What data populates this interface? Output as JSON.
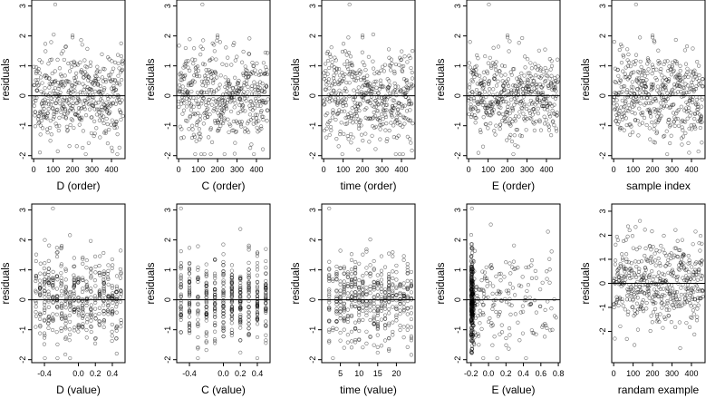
{
  "figure": {
    "description_free": true
  },
  "chart_data": [
    {
      "type": "scatter",
      "panel": "D-order",
      "xlabel": "D (order)",
      "ylabel": "residuals",
      "xlim": [
        -10,
        470
      ],
      "ylim": [
        -2.1,
        3.2
      ],
      "xticks": [
        0,
        100,
        200,
        300,
        400
      ],
      "yticks": [
        -2,
        -1,
        0,
        1,
        2,
        3
      ],
      "hline": 0,
      "points": "order",
      "seed": 11
    },
    {
      "type": "scatter",
      "panel": "C-order",
      "xlabel": "C (order)",
      "ylabel": "residuals",
      "xlim": [
        -10,
        470
      ],
      "ylim": [
        -2.1,
        3.2
      ],
      "xticks": [
        0,
        100,
        200,
        300,
        400
      ],
      "yticks": [
        -2,
        -1,
        0,
        1,
        2,
        3
      ],
      "hline": 0,
      "points": "order",
      "seed": 22
    },
    {
      "type": "scatter",
      "panel": "time-order",
      "xlabel": "time (order)",
      "ylabel": "residuals",
      "xlim": [
        -10,
        470
      ],
      "ylim": [
        -2.1,
        3.2
      ],
      "xticks": [
        0,
        100,
        200,
        300,
        400
      ],
      "yticks": [
        -2,
        -1,
        0,
        1,
        2,
        3
      ],
      "hline": 0,
      "points": "order",
      "seed": 33
    },
    {
      "type": "scatter",
      "panel": "E-order",
      "xlabel": "E (order)",
      "ylabel": "residuals",
      "xlim": [
        -10,
        470
      ],
      "ylim": [
        -2.1,
        3.2
      ],
      "xticks": [
        0,
        100,
        200,
        300,
        400
      ],
      "yticks": [
        -2,
        -1,
        0,
        1,
        2,
        3
      ],
      "hline": 0,
      "points": "order",
      "seed": 44
    },
    {
      "type": "scatter",
      "panel": "sample-index",
      "xlabel": "sample index",
      "ylabel": "residuals",
      "xlim": [
        -10,
        470
      ],
      "ylim": [
        -2.1,
        3.2
      ],
      "xticks": [
        0,
        100,
        200,
        300,
        400
      ],
      "yticks": [
        -2,
        -1,
        0,
        1,
        2,
        3
      ],
      "hline": 0,
      "points": "order",
      "seed": 55
    },
    {
      "type": "scatter",
      "panel": "D-value",
      "xlabel": "D (value)",
      "ylabel": "residuals",
      "xlim": [
        -0.55,
        0.55
      ],
      "ylim": [
        -2.1,
        3.2
      ],
      "xticks": [
        -0.4,
        0.0,
        0.2,
        0.4
      ],
      "xticklabels": [
        "-0.4",
        "0.0",
        "0.2",
        "0.4"
      ],
      "yticks": [
        -2,
        -1,
        0,
        1,
        2,
        3
      ],
      "hline": 0,
      "points": "uniform",
      "seed": 66
    },
    {
      "type": "scatter",
      "panel": "C-value",
      "xlabel": "C (value)",
      "ylabel": "residuals",
      "xlim": [
        -0.55,
        0.55
      ],
      "ylim": [
        -2.1,
        3.2
      ],
      "xticks": [
        -0.4,
        0.0,
        0.2,
        0.4
      ],
      "xticklabels": [
        "-0.4",
        "0.0",
        "0.2",
        "0.4"
      ],
      "yticks": [
        -2,
        -1,
        0,
        1,
        2,
        3
      ],
      "hline": 0,
      "points": "columns",
      "columns": [
        -0.5,
        -0.4,
        -0.3,
        -0.2,
        -0.1,
        0.0,
        0.1,
        0.2,
        0.3,
        0.4,
        0.5
      ],
      "seed": 77
    },
    {
      "type": "scatter",
      "panel": "time-value",
      "xlabel": "time (value)",
      "ylabel": "residuals",
      "xlim": [
        0,
        25
      ],
      "ylim": [
        -2.1,
        3.2
      ],
      "xticks": [
        5,
        10,
        15,
        20
      ],
      "xticklabels": [
        "5",
        "10",
        "15",
        "20"
      ],
      "yticks": [
        -2,
        -1,
        0,
        1,
        2,
        3
      ],
      "hline": 0,
      "points": "columns",
      "columns": [
        2,
        3,
        4,
        5,
        6,
        7,
        8,
        9,
        10,
        11,
        12,
        13,
        14,
        15,
        16,
        17,
        18,
        19,
        20,
        21,
        22,
        23,
        24
      ],
      "seed": 88
    },
    {
      "type": "scatter",
      "panel": "E-value",
      "xlabel": "E (value)",
      "ylabel": "residuals",
      "xlim": [
        -0.25,
        0.82
      ],
      "ylim": [
        -2.1,
        3.2
      ],
      "xticks": [
        -0.2,
        0.0,
        0.2,
        0.4,
        0.6,
        0.8
      ],
      "xticklabels": [
        "-0.2",
        "0.0",
        "0.2",
        "0.4",
        "0.6",
        "0.8"
      ],
      "yticks": [
        -2,
        -1,
        0,
        1,
        2,
        3
      ],
      "hline": 0,
      "points": "skewed",
      "seed": 99
    },
    {
      "type": "scatter",
      "panel": "random-example",
      "xlabel": "randam example",
      "ylabel": "residuals",
      "xlim": [
        -10,
        470
      ],
      "ylim": [
        -3.3,
        3.3
      ],
      "xticks": [
        0,
        100,
        200,
        300,
        400
      ],
      "yticks": [
        -2,
        -1,
        0,
        1,
        2,
        3
      ],
      "hline": 0,
      "points": "order-wide",
      "seed": 111
    }
  ]
}
